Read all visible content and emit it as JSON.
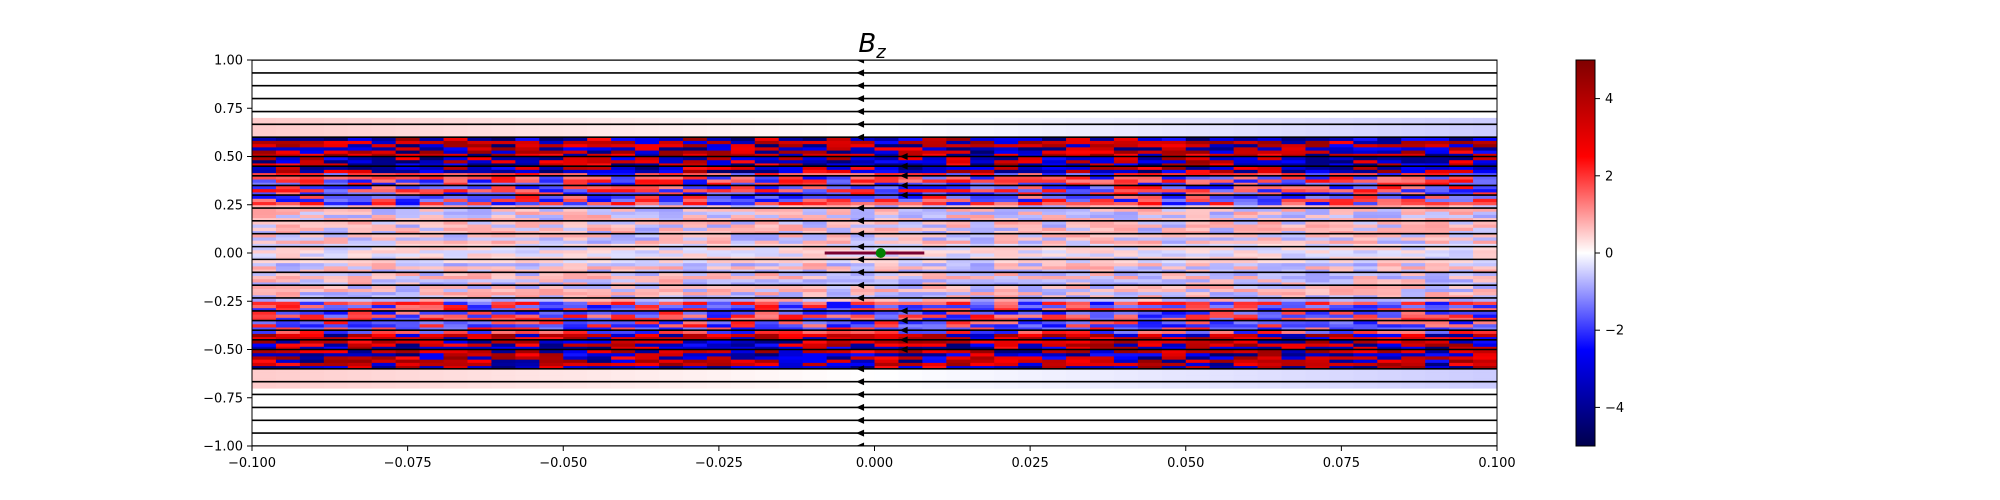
{
  "chart_data": {
    "type": "heatmap",
    "title": "B",
    "title_subscript": "z",
    "xlabel": "",
    "ylabel": "",
    "xlim": [
      -0.1,
      0.1
    ],
    "ylim": [
      -1.0,
      1.0
    ],
    "x_ticks": [
      -0.1,
      -0.075,
      -0.05,
      -0.025,
      0.0,
      0.025,
      0.05,
      0.075,
      0.1
    ],
    "x_tick_labels": [
      "−0.100",
      "−0.075",
      "−0.050",
      "−0.025",
      "0.000",
      "0.025",
      "0.050",
      "0.075",
      "0.100"
    ],
    "y_ticks": [
      1.0,
      0.75,
      0.5,
      0.25,
      0.0,
      -0.25,
      -0.5,
      -0.75,
      -1.0
    ],
    "y_tick_labels": [
      "1.00",
      "0.75",
      "0.50",
      "0.25",
      "0.00",
      "−0.25",
      "−0.50",
      "−0.75",
      "−1.00"
    ],
    "colormap": "seismic",
    "colorbar": {
      "vmin": -5,
      "vmax": 5,
      "ticks": [
        4,
        2,
        0,
        -2,
        -4
      ],
      "tick_labels": [
        "4",
        "2",
        "0",
        "−2",
        "−4"
      ],
      "colors": [
        "#00004c",
        "#0000ff",
        "#ffffff",
        "#ff0000",
        "#800000"
      ]
    },
    "field_lines": {
      "direction": "leftward",
      "y_values": [
        -1.0,
        -0.933,
        -0.867,
        -0.8,
        -0.733,
        -0.667,
        -0.6,
        -0.5,
        -0.45,
        -0.4,
        -0.35,
        -0.3,
        -0.233,
        -0.167,
        -0.1,
        -0.033,
        0.033,
        0.1,
        0.167,
        0.233,
        0.3,
        0.35,
        0.4,
        0.45,
        0.5,
        0.6,
        0.667,
        0.733,
        0.8,
        0.867,
        0.933,
        1.0
      ],
      "arrow_x": -0.002,
      "arrow_x_outer": 0.005
    },
    "source_marker": {
      "x": 0.001,
      "y": 0.0,
      "color": "#008000"
    },
    "current_sheet": {
      "x_range": [
        -0.008,
        0.008
      ],
      "y": 0.0,
      "color": "#7a0030"
    },
    "grid": false
  }
}
